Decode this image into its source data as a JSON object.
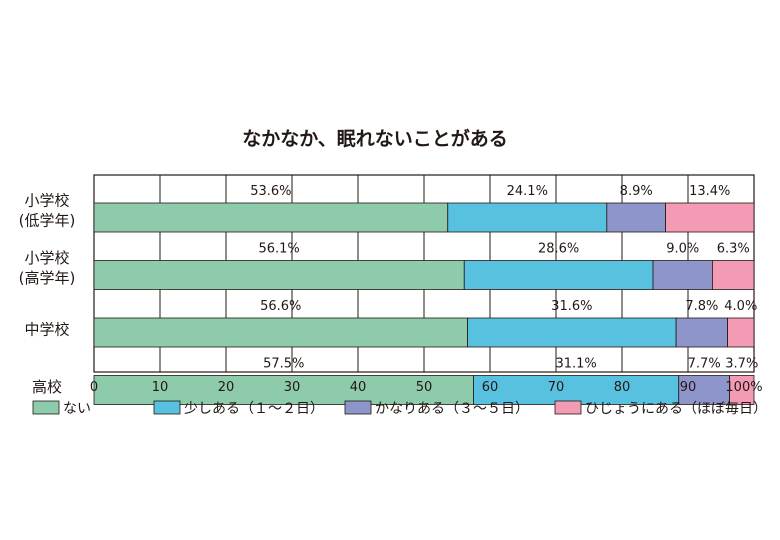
{
  "chart_data": {
    "type": "bar",
    "orientation": "horizontal",
    "stacked": true,
    "title": "なかなか、眠れないことがある",
    "categories": [
      [
        "小学校",
        "(低学年)"
      ],
      [
        "小学校",
        "(高学年)"
      ],
      [
        "中学校"
      ],
      [
        "高校"
      ]
    ],
    "series": [
      {
        "name": "ない",
        "color": "#8dcbab",
        "values": [
          53.6,
          56.1,
          56.6,
          57.5
        ],
        "labels": [
          "53.6%",
          "56.1%",
          "56.6%",
          "57.5%"
        ]
      },
      {
        "name": "少しある（１～２日）",
        "color": "#59c1e0",
        "values": [
          24.1,
          28.6,
          31.6,
          31.1
        ],
        "labels": [
          "24.1%",
          "28.6%",
          "31.6%",
          "31.1%"
        ]
      },
      {
        "name": "かなりある（３～５日）",
        "color": "#8e95cb",
        "values": [
          8.9,
          9.0,
          7.8,
          7.7
        ],
        "labels": [
          "8.9%",
          "9.0%",
          "7.8%",
          "7.7%"
        ]
      },
      {
        "name": "ひじょうにある（ほぼ毎日）",
        "color": "#f39bb4",
        "values": [
          13.4,
          6.3,
          4.0,
          3.7
        ],
        "labels": [
          "13.4%",
          "6.3%",
          "4.0%",
          "3.7%"
        ]
      }
    ],
    "xlim": [
      0,
      100
    ],
    "xticks": [
      "0",
      "10",
      "20",
      "30",
      "40",
      "50",
      "60",
      "70",
      "80",
      "90",
      "100%"
    ],
    "grid": true,
    "legend_position": "bottom"
  }
}
